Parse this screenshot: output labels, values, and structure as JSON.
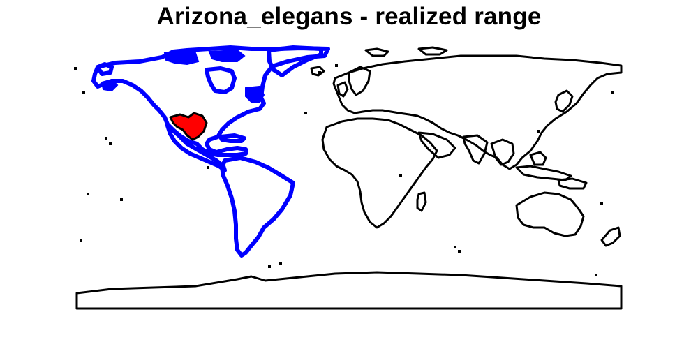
{
  "title": "Arizona_elegans - realized range",
  "map": {
    "species": "Arizona_elegans",
    "map_type": "realized range",
    "projection": "equirectangular world map",
    "colors": {
      "realized_range_fill": "#ff0000",
      "americas_highlight": "#0000ff",
      "coastline": "#000000",
      "background": "#ffffff"
    },
    "regions": [
      {
        "name": "americas",
        "style": "blue thick outline"
      },
      {
        "name": "realized-range-southwest-north-america",
        "style": "red fill"
      },
      {
        "name": "eurasia",
        "style": "black outline"
      },
      {
        "name": "africa",
        "style": "black outline"
      },
      {
        "name": "australia",
        "style": "black outline"
      },
      {
        "name": "antarctica",
        "style": "black outline"
      }
    ]
  }
}
